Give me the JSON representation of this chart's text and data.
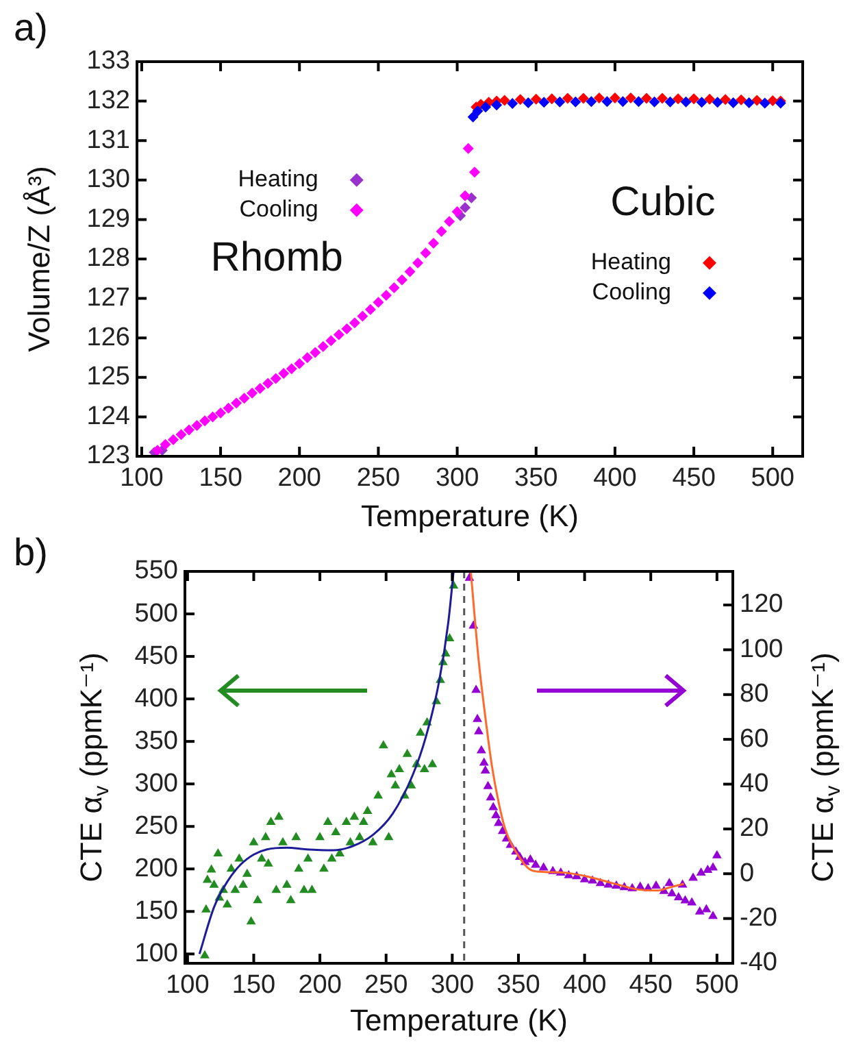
{
  "chart_data": [
    {
      "type": "scatter",
      "title": "a)",
      "xlabel": "Temperature (K)",
      "ylabel": "Volume/Z (Å³)",
      "xlim": [
        97,
        519
      ],
      "ylim": [
        123,
        133
      ],
      "xticks": [
        100,
        150,
        200,
        250,
        300,
        350,
        400,
        450,
        500
      ],
      "yticks": [
        123,
        124,
        125,
        126,
        127,
        128,
        129,
        130,
        131,
        132,
        133
      ],
      "marker": "diamond",
      "legend": "left",
      "annotations": [
        "Rhomb",
        "Cubic"
      ],
      "series": [
        {
          "name": "Heating",
          "color": "#9932cc",
          "x": [
            108,
            113,
            302,
            305,
            309
          ],
          "values": [
            123.1,
            123.15,
            129.1,
            129.3,
            129.55
          ]
        },
        {
          "name": "Cooling",
          "color": "#ff00ff",
          "x": [
            110,
            115,
            120,
            125,
            130,
            135,
            140,
            145,
            150,
            155,
            160,
            165,
            170,
            175,
            180,
            185,
            190,
            195,
            200,
            205,
            210,
            215,
            220,
            225,
            230,
            235,
            240,
            245,
            250,
            255,
            260,
            265,
            270,
            275,
            280,
            285,
            290,
            295,
            300,
            305,
            307,
            311
          ],
          "values": [
            123.15,
            123.3,
            123.42,
            123.55,
            123.67,
            123.78,
            123.9,
            124.0,
            124.1,
            124.22,
            124.35,
            124.47,
            124.6,
            124.72,
            124.85,
            124.97,
            125.1,
            125.22,
            125.35,
            125.5,
            125.63,
            125.78,
            125.93,
            126.08,
            126.23,
            126.38,
            126.55,
            126.72,
            126.9,
            127.08,
            127.27,
            127.47,
            127.68,
            127.9,
            128.15,
            128.4,
            128.7,
            128.95,
            129.2,
            129.6,
            130.8,
            130.2
          ]
        },
        {
          "name": "Heating",
          "color": "#ff0000",
          "x": [
            312,
            315,
            320,
            325,
            330,
            340,
            350,
            360,
            370,
            380,
            390,
            400,
            410,
            420,
            430,
            440,
            450,
            460,
            470,
            480,
            490,
            500,
            505
          ],
          "values": [
            131.85,
            131.92,
            131.97,
            132.0,
            132.02,
            132.04,
            132.05,
            132.06,
            132.07,
            132.07,
            132.08,
            132.08,
            132.08,
            132.07,
            132.07,
            132.06,
            132.06,
            132.05,
            132.04,
            132.03,
            132.02,
            132.01,
            132.0
          ]
        },
        {
          "name": "Cooling",
          "color": "#0000ff",
          "x": [
            310,
            313,
            318,
            325,
            335,
            345,
            355,
            365,
            375,
            385,
            395,
            405,
            415,
            425,
            435,
            445,
            455,
            465,
            475,
            485,
            495,
            505
          ],
          "values": [
            131.6,
            131.75,
            131.85,
            131.9,
            131.94,
            131.96,
            131.97,
            131.98,
            131.98,
            131.99,
            131.99,
            131.99,
            131.99,
            131.98,
            131.98,
            131.98,
            131.97,
            131.97,
            131.96,
            131.96,
            131.95,
            131.95
          ]
        }
      ]
    },
    {
      "type": "scatter",
      "title": "b)",
      "xlabel": "Temperature (K)",
      "ylabel": "CTE α$_{v}$ (ppmK⁻¹)",
      "y2label": "CTE α$_{v}$ (ppmK⁻¹)",
      "xlim": [
        98,
        512
      ],
      "ylim": [
        89,
        550
      ],
      "y2lim": [
        -40,
        135
      ],
      "xticks": [
        100,
        150,
        200,
        250,
        300,
        350,
        400,
        450,
        500
      ],
      "yticks": [
        100,
        150,
        200,
        250,
        300,
        350,
        400,
        450,
        500,
        550
      ],
      "y2ticks": [
        -40,
        -20,
        0,
        20,
        40,
        60,
        80,
        100,
        120
      ],
      "marker": "triangle",
      "ref_lines": [
        {
          "axis": "x",
          "value": 309,
          "color": "#555555",
          "line_style": "dashed"
        }
      ],
      "series": [
        {
          "color": "#228b22",
          "x": [
            113,
            114,
            115,
            118,
            120,
            123,
            124,
            127,
            130,
            133,
            136,
            139,
            142,
            145,
            148,
            150,
            153,
            156,
            159,
            161,
            163,
            167,
            169,
            172,
            175,
            178,
            182,
            184,
            188,
            191,
            194,
            200,
            203,
            206,
            209,
            212,
            215,
            220,
            223,
            226,
            230,
            233,
            236,
            240,
            244,
            248,
            252,
            254,
            257,
            260,
            264,
            266,
            269,
            273,
            276,
            279,
            281,
            285,
            288,
            291,
            293,
            295,
            298,
            301
          ],
          "values": [
            98,
            152,
            187,
            199,
            181,
            218,
            166,
            175,
            158,
            200,
            175,
            212,
            181,
            194,
            138,
            231,
            163,
            212,
            237,
            206,
            255,
            175,
            261,
            231,
            181,
            163,
            237,
            200,
            175,
            212,
            175,
            237,
            200,
            255,
            212,
            243,
            218,
            255,
            231,
            261,
            237,
            255,
            268,
            231,
            286,
            345,
            237,
            311,
            298,
            317,
            286,
            335,
            298,
            323,
            360,
            317,
            372,
            323,
            397,
            422,
            443,
            453,
            471,
            533
          ]
        },
        {
          "color": "#9400d3",
          "axis": "y2",
          "x": [
            313,
            316,
            318,
            319,
            320,
            322,
            324,
            325,
            327,
            329,
            331,
            333,
            335,
            338,
            341,
            344,
            348,
            351,
            355,
            359,
            363,
            369,
            376,
            382,
            388,
            394,
            400,
            406,
            412,
            418,
            424,
            430,
            436,
            442,
            448,
            454,
            460,
            464,
            466,
            471,
            474,
            476,
            481,
            482,
            487,
            488,
            492,
            493,
            497,
            497,
            500
          ],
          "values": [
            132,
            110.7,
            82,
            69,
            63.5,
            55,
            49.5,
            46,
            39,
            34,
            29.6,
            26,
            22.6,
            19,
            15.6,
            12.8,
            9.8,
            7.4,
            5.1,
            6.3,
            3.9,
            2.7,
            1.1,
            0.4,
            -0.8,
            -1.2,
            -2.6,
            -3.1,
            -4.3,
            -5,
            -5.4,
            -6.1,
            -6.6,
            -5.9,
            -6.6,
            -5.4,
            -7.8,
            -4.3,
            -8.9,
            -10.6,
            -5,
            -12,
            -12.9,
            -1.9,
            -17,
            0.4,
            -16,
            1.6,
            -19,
            2.7,
            8.1
          ]
        },
        {
          "type": "line",
          "color": "#1c1c99",
          "marker": "none",
          "x": [
            109,
            120,
            130,
            140,
            150,
            160,
            175,
            190,
            210,
            225,
            240,
            255,
            270,
            280,
            290,
            297,
            301
          ],
          "values": [
            100,
            155,
            185,
            205,
            217,
            223,
            225,
            223,
            222,
            227,
            240,
            265,
            310,
            355,
            420,
            490,
            550
          ]
        },
        {
          "type": "line",
          "color": "#ff6a2a",
          "marker": "none",
          "axis": "y2",
          "x": [
            314,
            320,
            325,
            330,
            335,
            340,
            350,
            360,
            370,
            385,
            400,
            420,
            440,
            455,
            465,
            475
          ],
          "values": [
            135,
            95,
            70,
            48,
            32,
            20,
            8,
            1.5,
            0.8,
            0.5,
            -1,
            -4,
            -7,
            -7.5,
            -6,
            -4.5
          ]
        }
      ]
    }
  ]
}
